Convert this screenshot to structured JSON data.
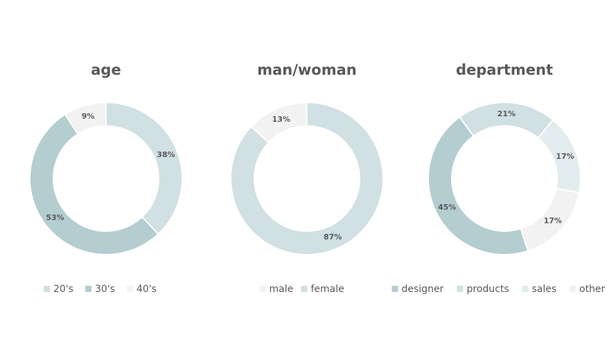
{
  "chart_data": [
    {
      "type": "donut",
      "title": "age",
      "start_angle": 0,
      "categories": [
        "20's",
        "30's",
        "40's"
      ],
      "values": [
        38,
        53,
        9
      ],
      "value_labels": [
        "38%",
        "53%",
        "9%"
      ],
      "colors": [
        "#d0e0e3",
        "#b4cdd1",
        "#f2f2f2"
      ]
    },
    {
      "type": "donut",
      "title": "man/woman",
      "start_angle": 313,
      "categories": [
        "male",
        "female"
      ],
      "values": [
        13,
        87
      ],
      "value_labels": [
        "13%",
        "87%"
      ],
      "colors": [
        "#f2f2f2",
        "#d0e0e3"
      ]
    },
    {
      "type": "donut",
      "title": "department",
      "start_angle": 162,
      "categories": [
        "designer",
        "products",
        "sales",
        "other"
      ],
      "values": [
        45,
        21,
        17,
        17
      ],
      "value_labels": [
        "45%",
        "21%",
        "17%",
        "17%"
      ],
      "colors": [
        "#b4cdd1",
        "#d0e0e3",
        "#e2ecee",
        "#f2f2f2"
      ]
    }
  ]
}
